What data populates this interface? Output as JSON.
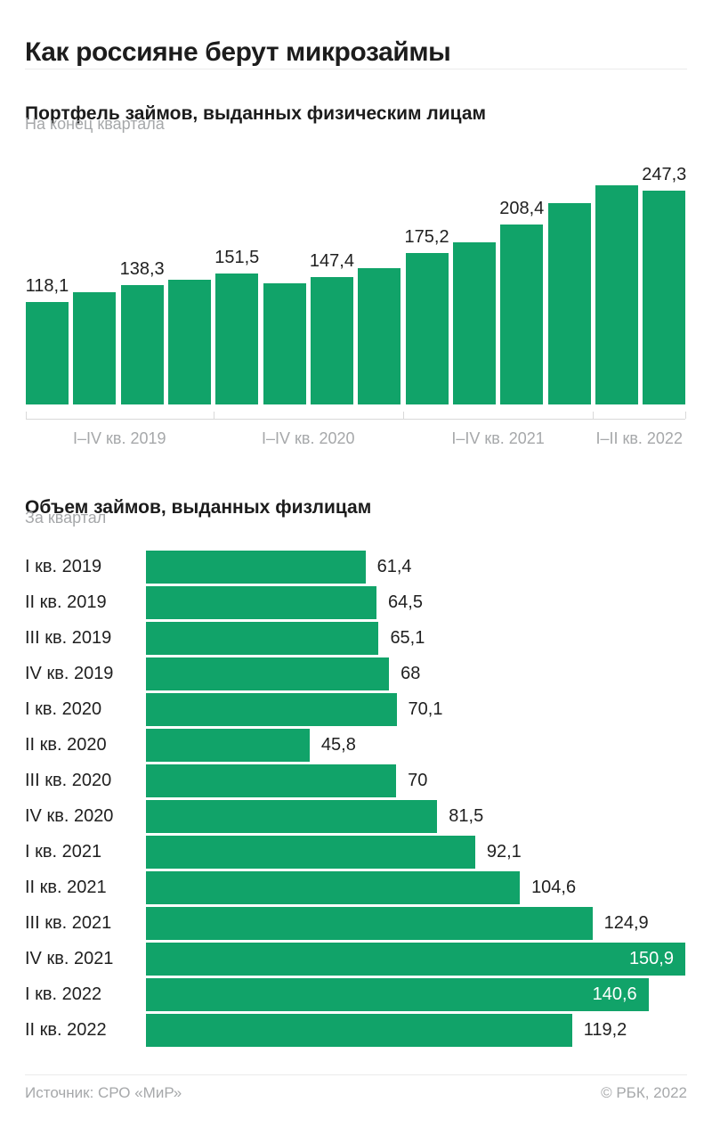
{
  "page": {
    "title": "Как россияне берут микрозаймы",
    "footer": {
      "source": "Источник: СРО «МиР»",
      "copyright": "© РБК, 2022"
    }
  },
  "colors": {
    "bar_green": "#11A369",
    "title_text": "#1C1C1C",
    "value_text": "#1F1F1F",
    "muted_text": "#A6A8AA",
    "axis_line": "#D9D9D9",
    "divider": "#EBEBEB",
    "value_text_inside_bar": "#FFFFFF"
  },
  "chart_data": [
    {
      "type": "bar",
      "orientation": "vertical",
      "title": "Портфель займов, выданных физическим лицам",
      "subtitle": "На конец квартала",
      "categories": [
        "I кв. 2019",
        "II кв. 2019",
        "III кв. 2019",
        "IV кв. 2019",
        "I кв. 2020",
        "II кв. 2020",
        "III кв. 2020",
        "IV кв. 2020",
        "I кв. 2021",
        "II кв. 2021",
        "III кв. 2021",
        "IV кв. 2021",
        "I кв. 2022",
        "II кв. 2022"
      ],
      "values": [
        118.1,
        130,
        138.3,
        144,
        151.5,
        140,
        147.4,
        158,
        175.2,
        187,
        208.4,
        233,
        253,
        247.3
      ],
      "bar_labels": [
        "118,1",
        "",
        "138,3",
        "",
        "151,5",
        "",
        "147,4",
        "",
        "175,2",
        "",
        "208,4",
        "",
        "",
        "247,3"
      ],
      "axis_groups": [
        "I–IV кв. 2019",
        "I–IV кв. 2020",
        "I–IV кв. 2021",
        "I–II кв. 2022"
      ],
      "axis_group_sizes": [
        4,
        4,
        4,
        2
      ],
      "ylim": [
        0,
        260
      ],
      "gridlines": false,
      "legend": "none"
    },
    {
      "type": "bar",
      "orientation": "horizontal",
      "title": "Объем займов, выданных физлицам",
      "subtitle": "За квартал",
      "categories": [
        "I кв. 2019",
        "II кв. 2019",
        "III кв. 2019",
        "IV кв. 2019",
        "I кв. 2020",
        "II кв. 2020",
        "III кв. 2020",
        "IV кв. 2020",
        "I кв. 2021",
        "II кв. 2021",
        "III кв. 2021",
        "IV кв. 2021",
        "I кв. 2022",
        "II кв. 2022"
      ],
      "values": [
        61.4,
        64.5,
        65.1,
        68,
        70.1,
        45.8,
        70,
        81.5,
        92.1,
        104.6,
        124.9,
        150.9,
        140.6,
        119.2
      ],
      "bar_labels": [
        "61,4",
        "64,5",
        "65,1",
        "68",
        "70,1",
        "45,8",
        "70",
        "81,5",
        "92,1",
        "104,6",
        "124,9",
        "150,9",
        "140,6",
        "119,2"
      ],
      "label_inside": [
        false,
        false,
        false,
        false,
        false,
        false,
        false,
        false,
        false,
        false,
        false,
        true,
        true,
        false
      ],
      "xlim": [
        0,
        155
      ],
      "gridlines": false,
      "legend": "none"
    }
  ]
}
